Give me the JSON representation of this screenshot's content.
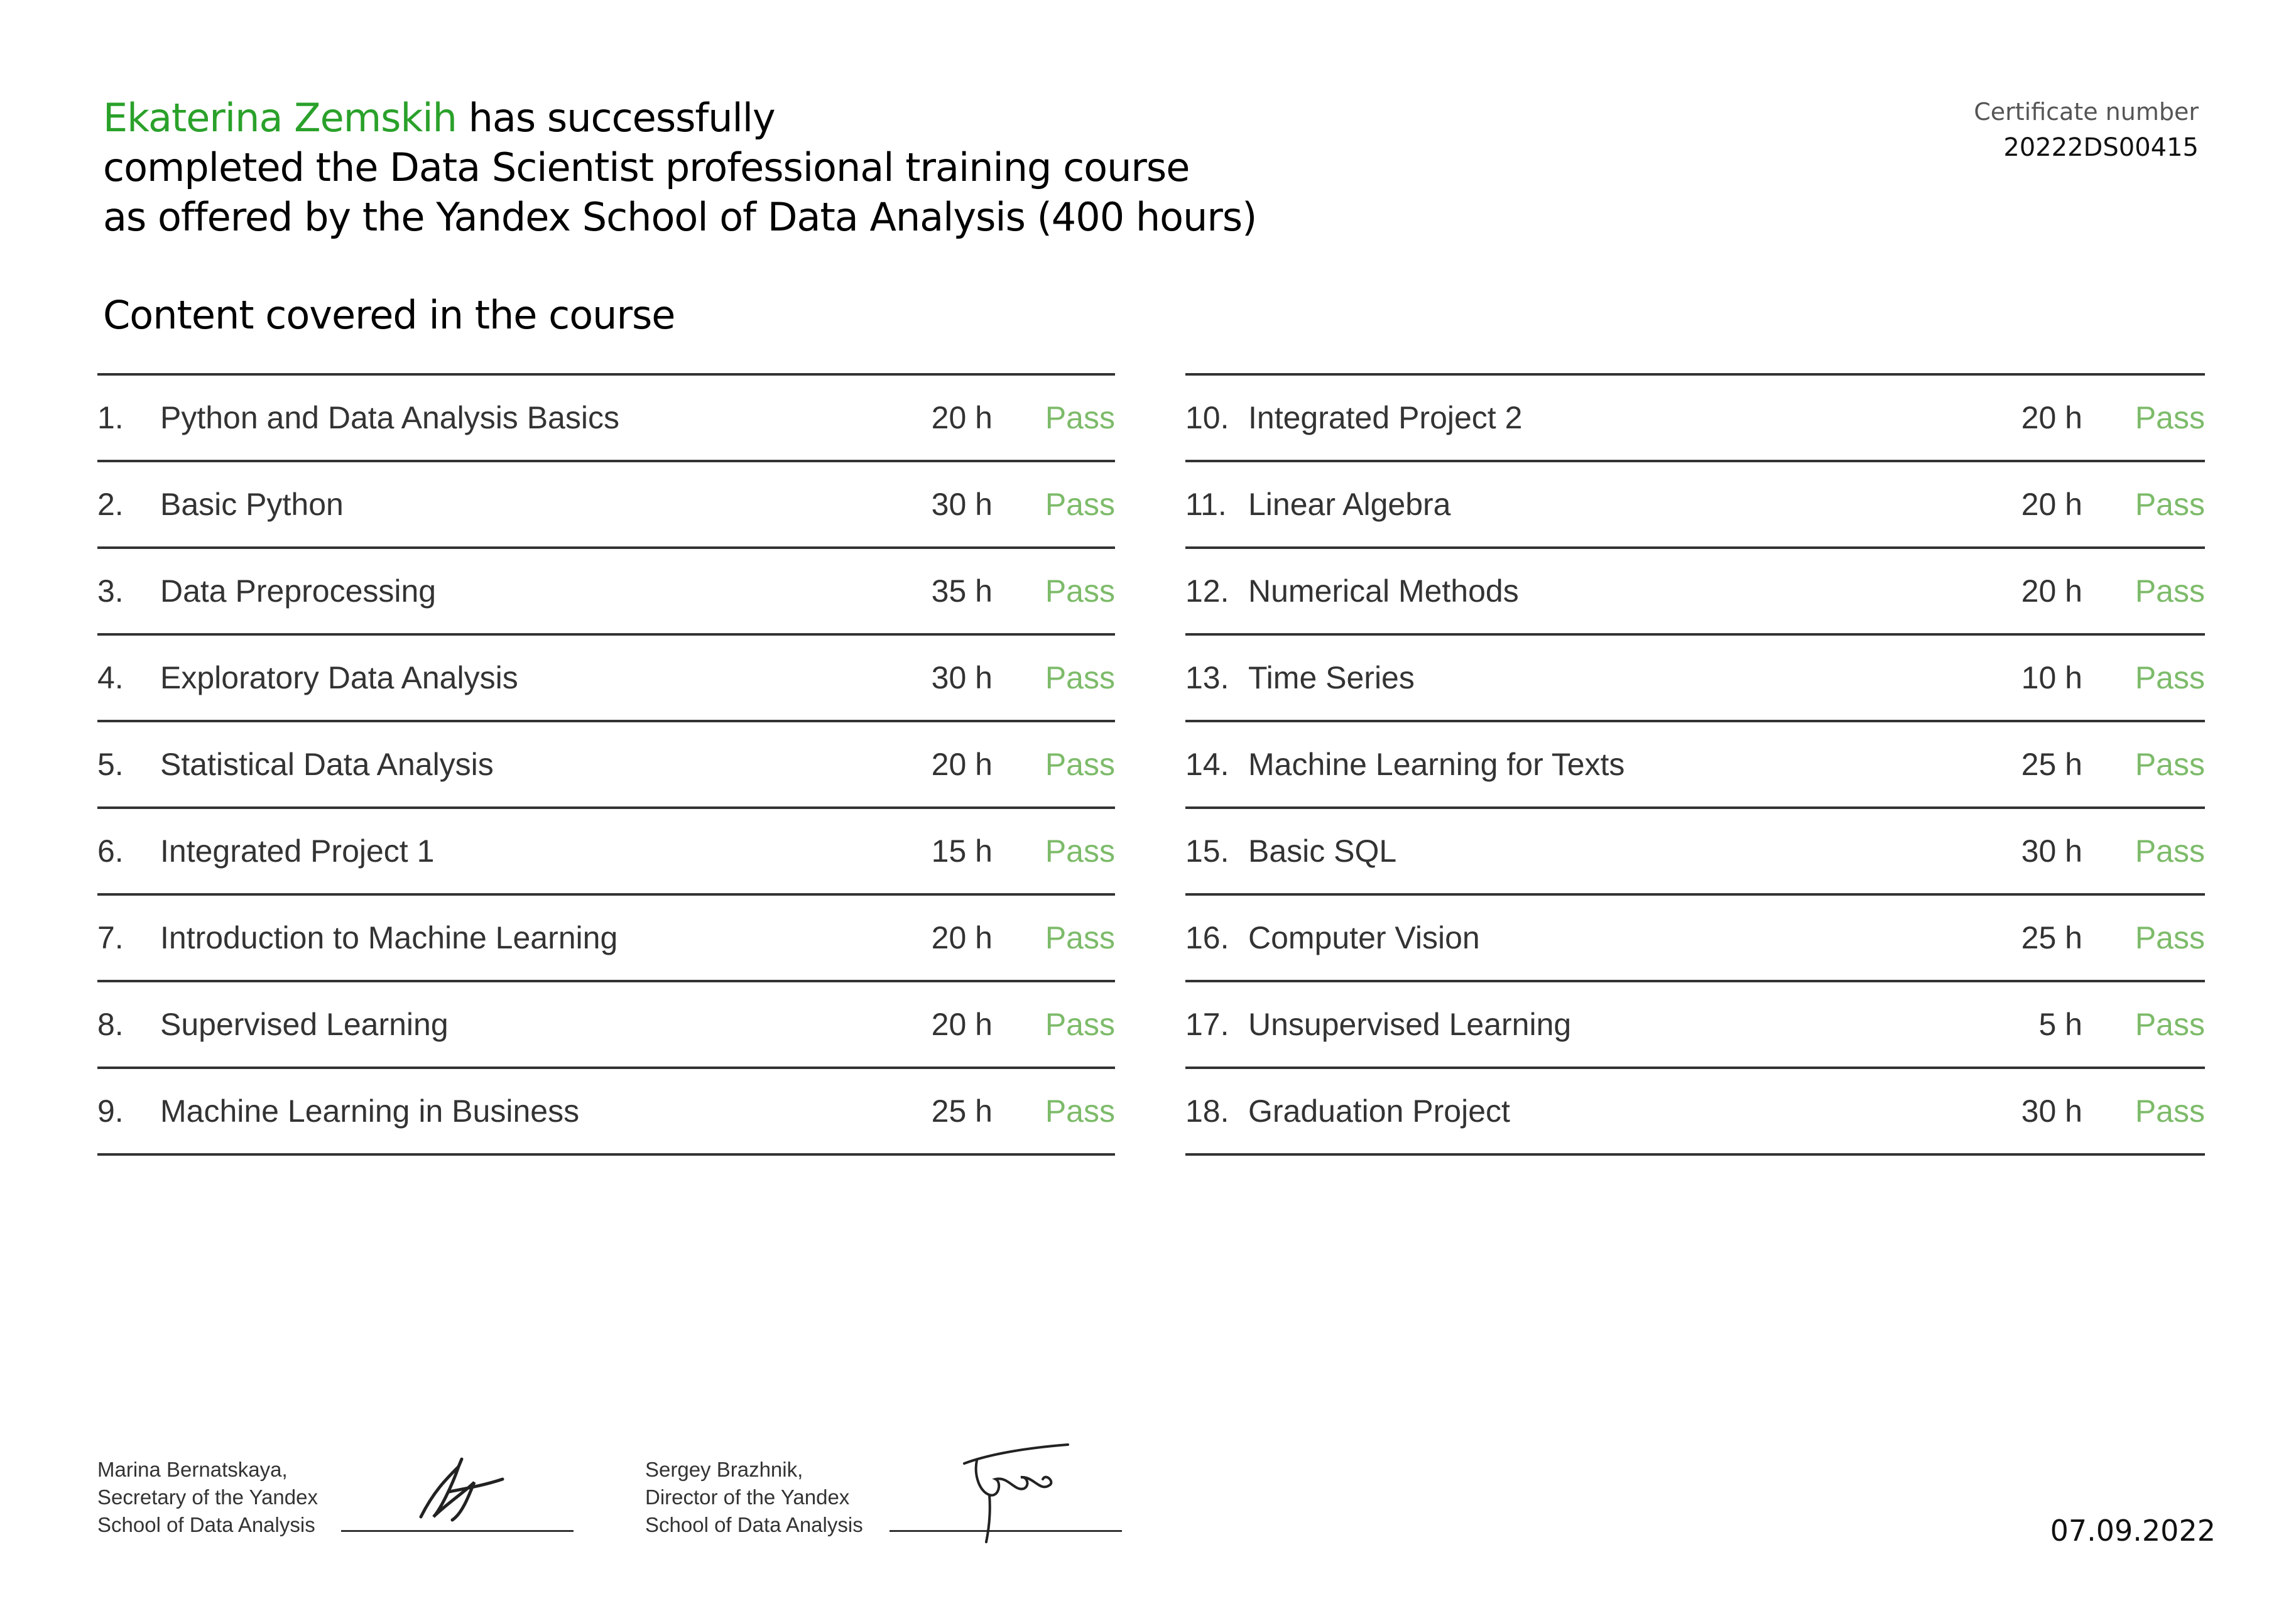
{
  "headline": {
    "name": "Ekaterina Zemskih",
    "line1_rest": " has successfully",
    "line2": "completed the Data Scientist professional training course",
    "line3": "as offered by the Yandex School of Data Analysis (400 hours)"
  },
  "certificate": {
    "label": "Certificate number",
    "number": "20222DS00415"
  },
  "section_title": "Content covered in the course",
  "courses_left": [
    {
      "no": "1.",
      "title": "Python and Data Analysis Basics",
      "hours": "20 h",
      "result": "Pass"
    },
    {
      "no": "2.",
      "title": "Basic Python",
      "hours": "30 h",
      "result": "Pass"
    },
    {
      "no": "3.",
      "title": "Data Preprocessing",
      "hours": "35 h",
      "result": "Pass"
    },
    {
      "no": "4.",
      "title": "Exploratory Data Analysis",
      "hours": "30 h",
      "result": "Pass"
    },
    {
      "no": "5.",
      "title": "Statistical Data Analysis",
      "hours": "20 h",
      "result": "Pass"
    },
    {
      "no": "6.",
      "title": "Integrated Project 1",
      "hours": "15 h",
      "result": "Pass"
    },
    {
      "no": "7.",
      "title": "Introduction to Machine Learning",
      "hours": "20 h",
      "result": "Pass"
    },
    {
      "no": "8.",
      "title": "Supervised Learning",
      "hours": "20 h",
      "result": "Pass"
    },
    {
      "no": "9.",
      "title": "Machine Learning in Business",
      "hours": "25 h",
      "result": "Pass"
    }
  ],
  "courses_right": [
    {
      "no": "10.",
      "title": "Integrated Project 2",
      "hours": "20 h",
      "result": "Pass"
    },
    {
      "no": "11.",
      "title": "Linear Algebra",
      "hours": "20 h",
      "result": "Pass"
    },
    {
      "no": "12.",
      "title": "Numerical Methods",
      "hours": "20 h",
      "result": "Pass"
    },
    {
      "no": "13.",
      "title": "Time Series",
      "hours": "10 h",
      "result": "Pass"
    },
    {
      "no": "14.",
      "title": "Machine Learning for Texts",
      "hours": "25 h",
      "result": "Pass"
    },
    {
      "no": "15.",
      "title": "Basic SQL",
      "hours": "30 h",
      "result": "Pass"
    },
    {
      "no": "16.",
      "title": "Computer Vision",
      "hours": "25 h",
      "result": "Pass"
    },
    {
      "no": "17.",
      "title": "Unsupervised Learning",
      "hours": "5 h",
      "result": "Pass"
    },
    {
      "no": "18.",
      "title": "Graduation Project",
      "hours": "30 h",
      "result": "Pass"
    }
  ],
  "signatories": [
    {
      "line1": "Marina Bernatskaya,",
      "line2": "Secretary of the Yandex",
      "line3": "School of Data Analysis"
    },
    {
      "line1": "Sergey Brazhnik,",
      "line2": "Director of the Yandex",
      "line3": "School of Data Analysis"
    }
  ],
  "date": "07.09.2022",
  "colors": {
    "name_green": "#2aa12a",
    "pass_green": "#7dbb6a",
    "rule": "#333333"
  }
}
